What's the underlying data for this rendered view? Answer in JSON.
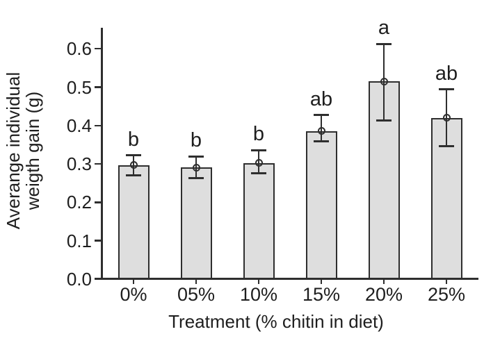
{
  "figure": {
    "background": "#ffffff",
    "text_color": "#1e1e1e"
  },
  "chart_data": {
    "type": "bar",
    "title": "",
    "xlabel": "Treatment (% chitin in diet)",
    "ylabel": "Averange individual weigth gain (g)",
    "ylabel_lines": [
      "Averange individual",
      "weigth gain (g)"
    ],
    "categories": [
      "0%",
      "05%",
      "10%",
      "15%",
      "20%",
      "25%"
    ],
    "values": [
      0.297,
      0.291,
      0.302,
      0.386,
      0.515,
      0.42
    ],
    "error_upper": [
      0.322,
      0.32,
      0.336,
      0.427,
      0.613,
      0.494
    ],
    "error_lower": [
      0.27,
      0.263,
      0.275,
      0.359,
      0.414,
      0.346
    ],
    "sig_letters": [
      "b",
      "b",
      "b",
      "ab",
      "a",
      "ab"
    ],
    "y_ticks": [
      "0.0",
      "0.1",
      "0.2",
      "0.3",
      "0.4",
      "0.5",
      "0.6"
    ],
    "ylim": [
      0,
      0.65
    ],
    "grid": false,
    "legend": "none",
    "marker": "circle-plus-icon",
    "colors": {
      "bar_fill": "#dedede",
      "bar_border": "#2e2e2e",
      "error_bar": "#2e2e2e",
      "axis": "#2e2e2e",
      "text": "#1e1e1e"
    }
  }
}
